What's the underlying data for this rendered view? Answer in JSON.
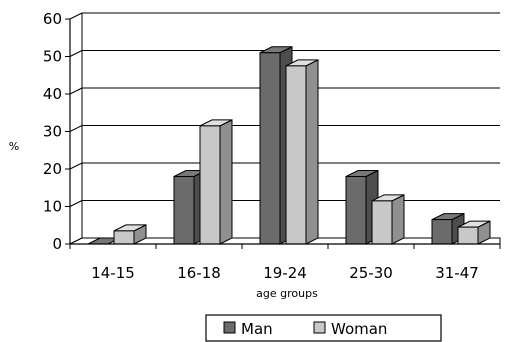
{
  "chart_data": {
    "type": "bar",
    "title": "",
    "xlabel": "age groups",
    "ylabel": "%",
    "ylim": [
      0,
      60
    ],
    "yticks": [
      0,
      10,
      20,
      30,
      40,
      50,
      60
    ],
    "categories": [
      "14-15",
      "16-18",
      "19-24",
      "25-30",
      "31-47"
    ],
    "series": [
      {
        "name": "Man",
        "values": [
          0,
          18,
          51,
          18,
          6.5
        ],
        "color": "#6b6b6b"
      },
      {
        "name": "Woman",
        "values": [
          3.5,
          31.5,
          47.5,
          11.5,
          4.5
        ],
        "color": "#c8c8c8"
      }
    ],
    "grid": true,
    "legend_position": "bottom",
    "style": "3d-clustered-column"
  }
}
